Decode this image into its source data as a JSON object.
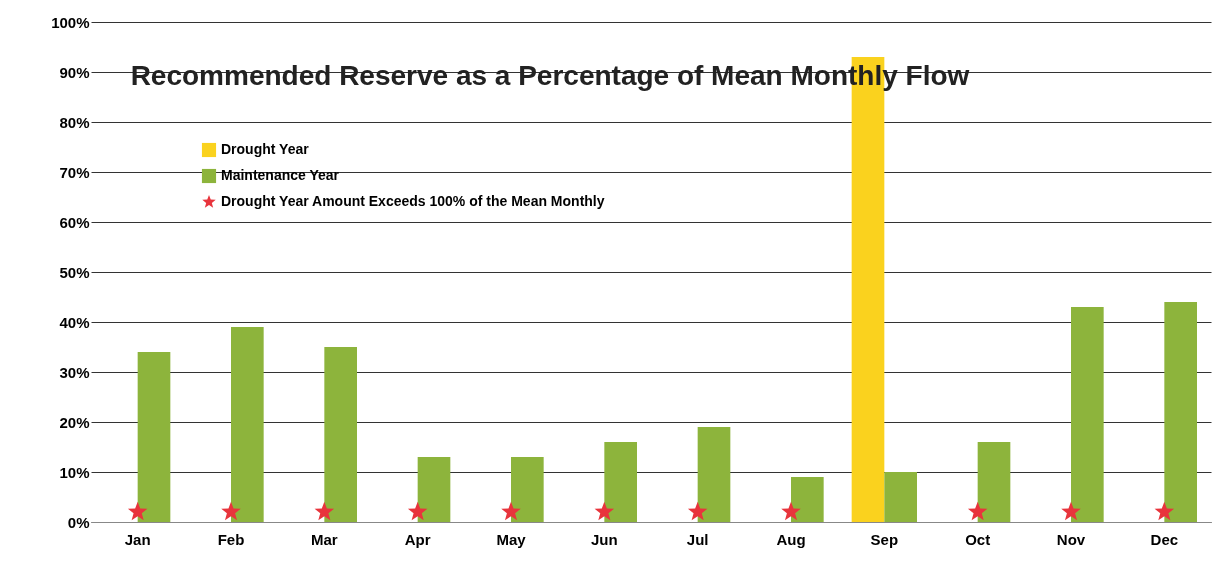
{
  "chart_data": {
    "type": "bar",
    "title": "Recommended Reserve as a Percentage of Mean Monthly Flow",
    "categories": [
      "Jan",
      "Feb",
      "Mar",
      "Apr",
      "May",
      "Jun",
      "Jul",
      "Aug",
      "Sep",
      "Oct",
      "Nov",
      "Dec"
    ],
    "series": [
      {
        "name": "Drought Year",
        "color": "#fad21e",
        "values": [
          null,
          null,
          null,
          null,
          null,
          null,
          null,
          null,
          93,
          null,
          null,
          null
        ]
      },
      {
        "name": "Maintenance Year",
        "color": "#8db43c",
        "values": [
          34,
          39,
          35,
          13,
          13,
          16,
          19,
          9,
          10,
          16,
          43,
          44
        ]
      },
      {
        "name": "Drought Year Amount Exceeds 100% of the Mean Monthly",
        "type": "scatter",
        "marker": "star",
        "color": "#e8343c",
        "values": [
          2,
          2,
          2,
          2,
          2,
          2,
          2,
          2,
          null,
          2,
          2,
          2
        ]
      }
    ],
    "ylim": [
      0,
      100
    ],
    "yticks": [
      {
        "value": 0,
        "label": "0%"
      },
      {
        "value": 10,
        "label": "10%"
      },
      {
        "value": 20,
        "label": "20%"
      },
      {
        "value": 30,
        "label": "30%"
      },
      {
        "value": 40,
        "label": "40%"
      },
      {
        "value": 50,
        "label": "50%"
      },
      {
        "value": 60,
        "label": "60%"
      },
      {
        "value": 70,
        "label": "70%"
      },
      {
        "value": 80,
        "label": "80%"
      },
      {
        "value": 90,
        "label": "90%"
      },
      {
        "value": 100,
        "label": "100%"
      }
    ],
    "grid": "y",
    "legend": "top left"
  }
}
